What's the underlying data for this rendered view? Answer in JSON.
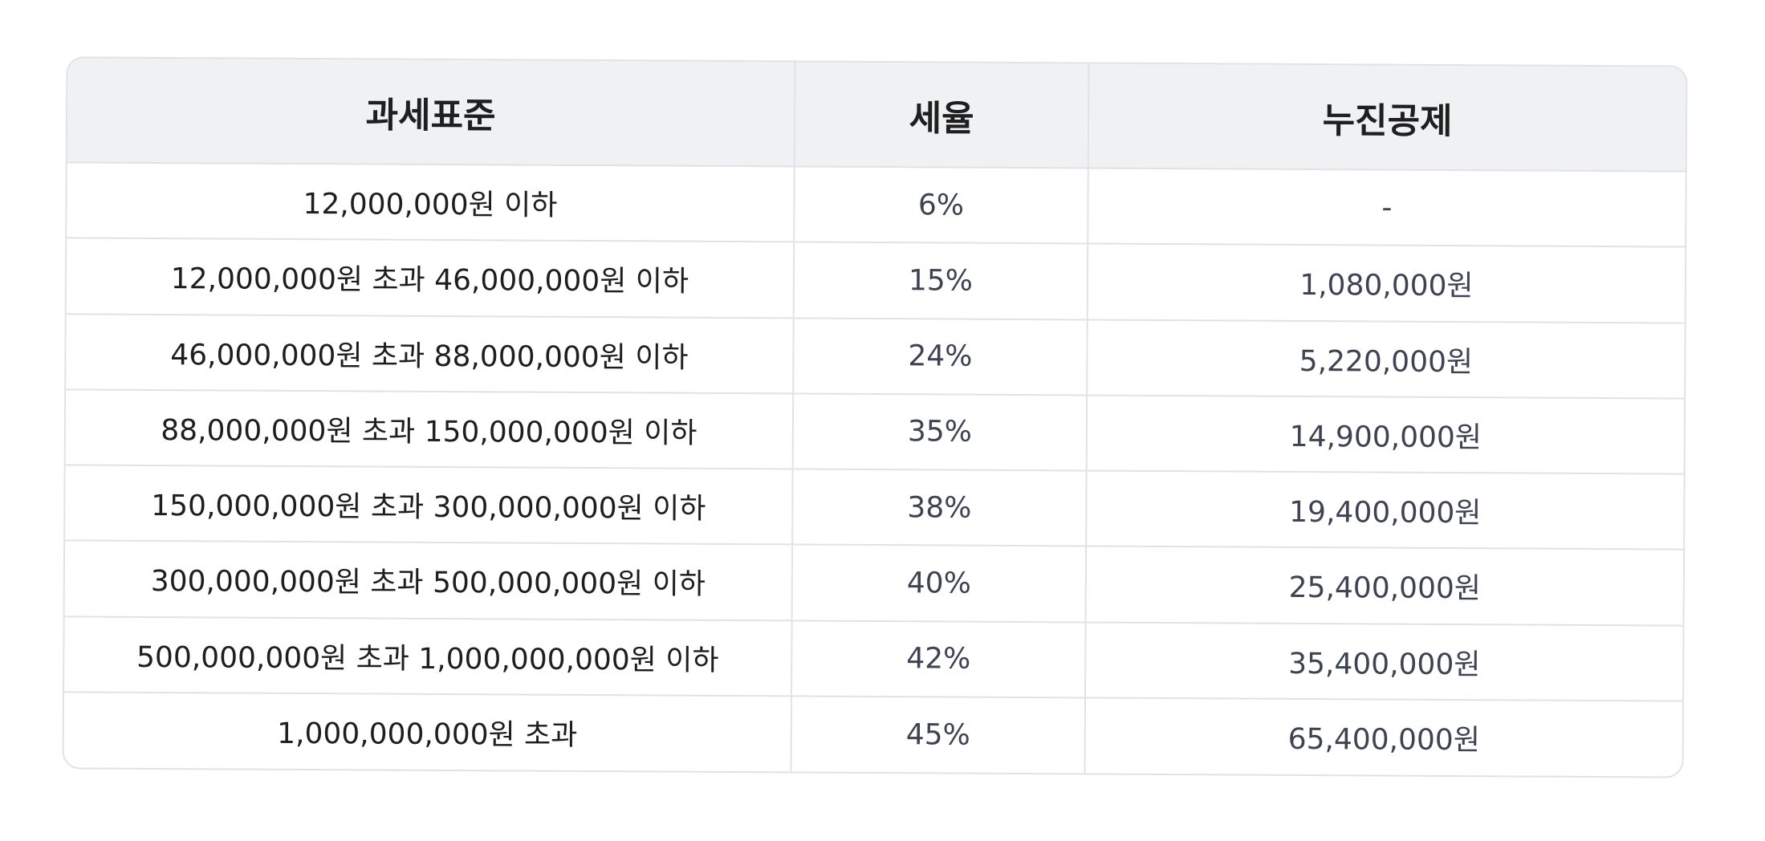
{
  "table": {
    "headers": [
      "과세표준",
      "세율",
      "누진공제"
    ],
    "rows": [
      {
        "bracket": "12,000,000원 이하",
        "rate": "6%",
        "deduction": "-"
      },
      {
        "bracket": "12,000,000원 초과 46,000,000원 이하",
        "rate": "15%",
        "deduction": "1,080,000원"
      },
      {
        "bracket": "46,000,000원 초과 88,000,000원 이하",
        "rate": "24%",
        "deduction": "5,220,000원"
      },
      {
        "bracket": "88,000,000원 초과 150,000,000원 이하",
        "rate": "35%",
        "deduction": "14,900,000원"
      },
      {
        "bracket": "150,000,000원 초과 300,000,000원 이하",
        "rate": "38%",
        "deduction": "19,400,000원"
      },
      {
        "bracket": "300,000,000원 초과 500,000,000원 이하",
        "rate": "40%",
        "deduction": "25,400,000원"
      },
      {
        "bracket": "500,000,000원 초과 1,000,000,000원 이하",
        "rate": "42%",
        "deduction": "35,400,000원"
      },
      {
        "bracket": "1,000,000,000원 초과",
        "rate": "45%",
        "deduction": "65,400,000원"
      }
    ]
  },
  "colors": {
    "header_background": "#f0f1f3",
    "border": "#e1e2e5",
    "text_primary": "#1e1e1e",
    "text_secondary": "#3d4350"
  }
}
